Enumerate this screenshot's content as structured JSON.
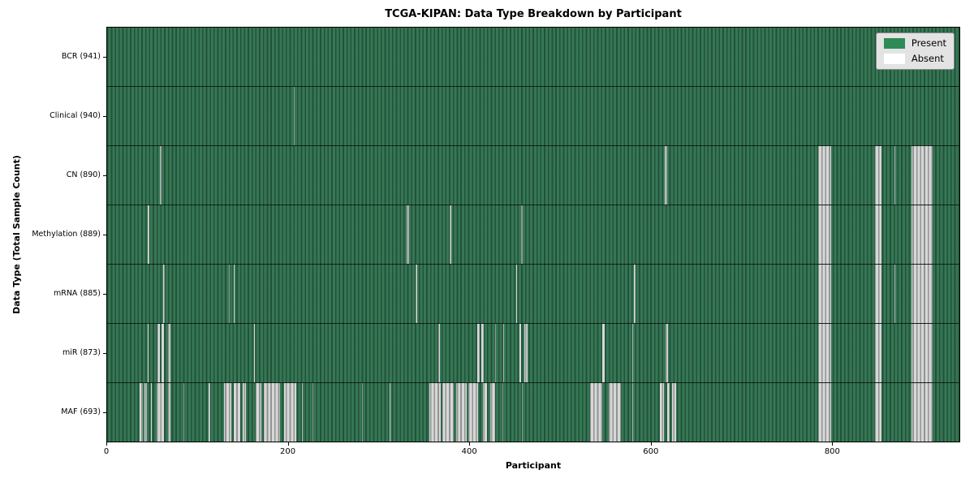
{
  "title": "TCGA-KIPAN: Data Type Breakdown by Participant",
  "colors": {
    "present": "#2f7350",
    "absent_fill": "#d6d6d6",
    "legend_present_swatch": "#2e8b57",
    "legend_absent_swatch": "#ffffff"
  },
  "chart_data": {
    "type": "heatmap",
    "title": "TCGA-KIPAN: Data Type Breakdown by Participant",
    "xlabel": "Participant",
    "ylabel": "Data Type (Total Sample Count)",
    "x_max": 941,
    "x_ticks": [
      0,
      200,
      400,
      600,
      800
    ],
    "legend_position": "upper right",
    "legend": [
      {
        "label": "Present",
        "color": "#2e8b57"
      },
      {
        "label": "Absent",
        "color": "#ffffff"
      }
    ],
    "value_encoding": {
      "present": 1,
      "absent": 0
    },
    "rows": [
      {
        "label": "BCR (941)",
        "data_type": "BCR",
        "present_count": 941,
        "absent_ranges": []
      },
      {
        "label": "Clinical (940)",
        "data_type": "Clinical",
        "present_count": 940,
        "absent_ranges": [
          [
            206,
            207
          ]
        ]
      },
      {
        "label": "CN (890)",
        "data_type": "CN",
        "present_count": 890,
        "absent_ranges": [
          [
            58,
            60
          ],
          [
            616,
            618
          ],
          [
            785,
            799
          ],
          [
            848,
            855
          ],
          [
            869,
            870
          ],
          [
            888,
            911
          ]
        ]
      },
      {
        "label": "Methylation (889)",
        "data_type": "Methylation",
        "present_count": 889,
        "absent_ranges": [
          [
            45,
            47
          ],
          [
            331,
            333
          ],
          [
            378,
            380
          ],
          [
            457,
            459
          ],
          [
            785,
            799
          ],
          [
            848,
            855
          ],
          [
            888,
            911
          ]
        ]
      },
      {
        "label": "mRNA (885)",
        "data_type": "mRNA",
        "present_count": 885,
        "absent_ranges": [
          [
            62,
            64
          ],
          [
            134,
            135
          ],
          [
            140,
            141
          ],
          [
            341,
            342
          ],
          [
            452,
            453
          ],
          [
            582,
            583
          ],
          [
            785,
            799
          ],
          [
            848,
            855
          ],
          [
            869,
            870
          ],
          [
            888,
            911
          ]
        ]
      },
      {
        "label": "miR (873)",
        "data_type": "miR",
        "present_count": 873,
        "absent_ranges": [
          [
            45,
            46
          ],
          [
            56,
            58
          ],
          [
            60,
            63
          ],
          [
            67,
            70
          ],
          [
            162,
            163
          ],
          [
            366,
            367
          ],
          [
            409,
            411
          ],
          [
            413,
            416
          ],
          [
            428,
            429
          ],
          [
            437,
            438
          ],
          [
            455,
            457
          ],
          [
            461,
            464
          ],
          [
            547,
            549
          ],
          [
            580,
            581
          ],
          [
            617,
            619
          ],
          [
            785,
            799
          ],
          [
            848,
            855
          ],
          [
            888,
            911
          ]
        ]
      },
      {
        "label": "MAF (693)",
        "data_type": "MAF",
        "present_count": 693,
        "absent_ranges": [
          [
            36,
            39
          ],
          [
            41,
            44
          ],
          [
            48,
            49
          ],
          [
            55,
            63
          ],
          [
            67,
            70
          ],
          [
            84,
            85
          ],
          [
            112,
            114
          ],
          [
            129,
            137
          ],
          [
            140,
            147
          ],
          [
            150,
            153
          ],
          [
            164,
            170
          ],
          [
            173,
            191
          ],
          [
            195,
            209
          ],
          [
            215,
            216
          ],
          [
            227,
            228
          ],
          [
            281,
            282
          ],
          [
            312,
            313
          ],
          [
            356,
            368
          ],
          [
            370,
            383
          ],
          [
            385,
            397
          ],
          [
            399,
            410
          ],
          [
            415,
            419
          ],
          [
            423,
            428
          ],
          [
            436,
            437
          ],
          [
            458,
            459
          ],
          [
            533,
            547
          ],
          [
            554,
            567
          ],
          [
            580,
            581
          ],
          [
            610,
            615
          ],
          [
            618,
            621
          ],
          [
            624,
            628
          ],
          [
            785,
            799
          ],
          [
            848,
            855
          ],
          [
            888,
            911
          ]
        ]
      }
    ]
  }
}
